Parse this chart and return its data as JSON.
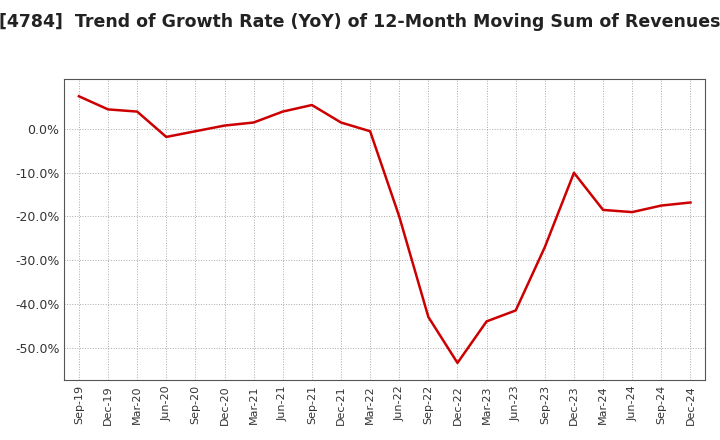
{
  "title": "[4784]  Trend of Growth Rate (YoY) of 12-Month Moving Sum of Revenues",
  "title_fontsize": 12.5,
  "line_color": "#cc0000",
  "background_color": "#ffffff",
  "grid_color": "#aaaaaa",
  "border_color": "#555555",
  "x_labels": [
    "Sep-19",
    "Dec-19",
    "Mar-20",
    "Jun-20",
    "Sep-20",
    "Dec-20",
    "Mar-21",
    "Jun-21",
    "Sep-21",
    "Dec-21",
    "Mar-22",
    "Jun-22",
    "Sep-22",
    "Dec-22",
    "Mar-23",
    "Jun-23",
    "Sep-23",
    "Dec-23",
    "Mar-24",
    "Jun-24",
    "Sep-24",
    "Dec-24"
  ],
  "y_values": [
    0.075,
    0.045,
    0.04,
    -0.018,
    -0.005,
    0.008,
    0.015,
    0.04,
    0.055,
    0.015,
    -0.005,
    -0.2,
    -0.43,
    -0.535,
    -0.44,
    -0.415,
    -0.27,
    -0.1,
    -0.185,
    -0.19,
    -0.175,
    -0.168
  ],
  "ylim": [
    -0.575,
    0.115
  ],
  "yticks": [
    0.0,
    -0.1,
    -0.2,
    -0.3,
    -0.4,
    -0.5
  ]
}
